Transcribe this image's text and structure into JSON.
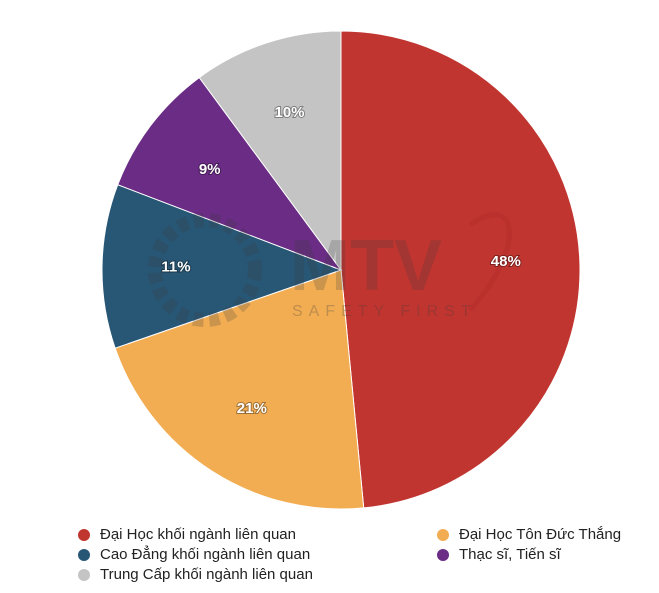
{
  "chart_data": {
    "type": "pie",
    "categories": [
      "Đại Học khối ngành liên quan",
      "Đại Học Tôn Đức Thắng",
      "Cao Đẳng khối ngành liên quan",
      "Thạc sĩ, Tiến sĩ",
      "Trung Cấp khối ngành liên quan"
    ],
    "values": [
      48,
      21,
      11,
      9,
      10
    ],
    "data_labels": [
      "48%",
      "21%",
      "11%",
      "9%",
      "10%"
    ],
    "colors": [
      "#c13530",
      "#f2ad52",
      "#285675",
      "#6a2c84",
      "#c4c4c4"
    ],
    "start_angle_deg": 0,
    "direction": "clockwise",
    "legend_placement": "bottom"
  },
  "watermark": {
    "brand": "MTV",
    "tagline": "SAFETY FIRST"
  },
  "legend": {
    "items": [
      {
        "label": "Đại Học khối ngành liên quan",
        "color": "#c13530"
      },
      {
        "label": "Đại Học Tôn Đức Thắng",
        "color": "#f2ad52"
      },
      {
        "label": "Cao Đẳng khối ngành liên quan",
        "color": "#285675"
      },
      {
        "label": "Thạc sĩ, Tiến sĩ",
        "color": "#6a2c84"
      },
      {
        "label": "Trung Cấp khối ngành liên quan",
        "color": "#c4c4c4"
      }
    ]
  }
}
